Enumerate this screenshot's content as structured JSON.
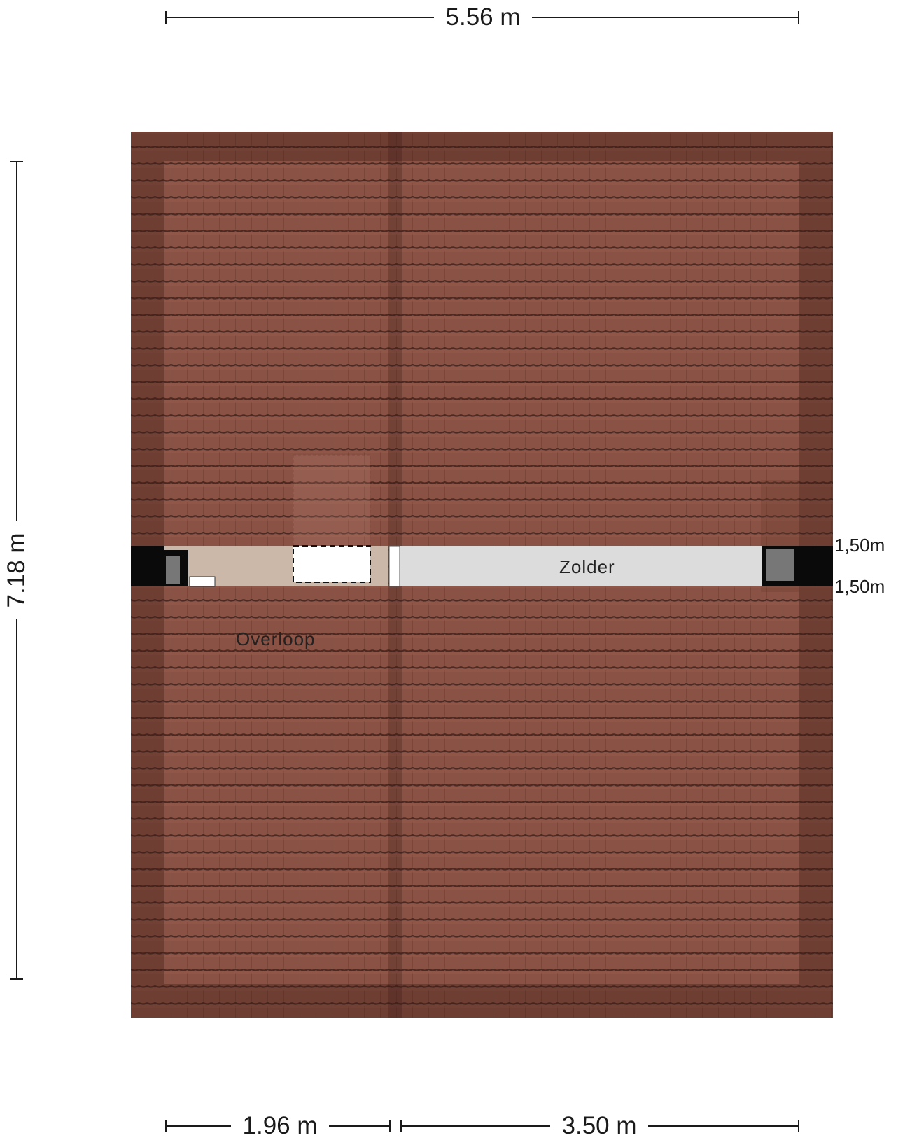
{
  "dimensions": {
    "top_width": "5.56 m",
    "left_height": "7.18 m",
    "bottom_left": "1.96 m",
    "bottom_right": "3.50 m"
  },
  "rooms": {
    "attic": "Zolder",
    "landing": "Overloop"
  },
  "heights": {
    "upper": "1,50m",
    "lower": "1,50m"
  },
  "colors": {
    "roof_tile": "#8a5244",
    "roof_tile_dark": "#5e342b",
    "attic_floor": "#dcdcdc",
    "landing_floor": "#cbb8a9",
    "wall": "#0a0a0a"
  }
}
